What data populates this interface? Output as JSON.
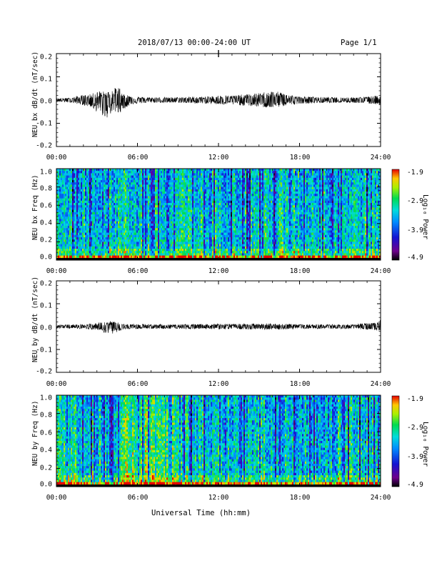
{
  "header": {
    "title": "2018/07/13  00:00-24:00 UT",
    "page": "Page 1/1"
  },
  "x_axis": {
    "label": "Universal Time (hh:mm)",
    "ticks": [
      "00:00",
      "06:00",
      "12:00",
      "18:00",
      "24:00"
    ]
  },
  "colorbar": {
    "label": "Log₁₀ Power",
    "ticks": [
      "-1.9",
      "-2.9",
      "-3.9",
      "-4.9"
    ],
    "range": [
      -4.9,
      -1.9
    ],
    "colormap": "rainbow (black-purple-blue-cyan-green-yellow-red)"
  },
  "chart_data": [
    {
      "type": "line",
      "ylabel": "NEU bx dB/dt (nT/sec)",
      "ylim": [
        -0.2,
        0.2
      ],
      "yticks": [
        "0.2",
        "0.1",
        "0.0",
        "-0.1",
        "-0.2"
      ],
      "xlim": [
        0,
        24
      ],
      "envelope": {
        "hours": [
          0,
          1,
          1.8,
          2.5,
          3.2,
          3.7,
          4.2,
          4.6,
          5,
          5.5,
          6,
          7,
          8,
          9,
          10,
          11,
          12,
          13,
          14,
          15,
          15.8,
          16.5,
          17,
          17.5,
          18,
          19,
          20,
          21,
          22,
          23,
          24
        ],
        "upper": [
          0.008,
          0.01,
          0.02,
          0.025,
          0.04,
          0.035,
          0.05,
          0.06,
          0.025,
          0.02,
          0.015,
          0.012,
          0.012,
          0.012,
          0.015,
          0.015,
          0.02,
          0.02,
          0.025,
          0.03,
          0.04,
          0.035,
          0.03,
          0.02,
          0.015,
          0.015,
          0.012,
          0.012,
          0.012,
          0.015,
          0.02
        ],
        "lower": [
          -0.008,
          -0.01,
          -0.02,
          -0.03,
          -0.06,
          -0.08,
          -0.05,
          -0.06,
          -0.04,
          -0.02,
          -0.015,
          -0.012,
          -0.012,
          -0.012,
          -0.015,
          -0.015,
          -0.02,
          -0.02,
          -0.025,
          -0.03,
          -0.035,
          -0.03,
          -0.025,
          -0.02,
          -0.015,
          -0.015,
          -0.012,
          -0.012,
          -0.012,
          -0.015,
          -0.02
        ]
      }
    },
    {
      "type": "heatmap",
      "ylabel": "NEU bx Freq (Hz)",
      "ylim": [
        0,
        1
      ],
      "yticks": [
        "1.0",
        "0.8",
        "0.6",
        "0.4",
        "0.2",
        "0.0"
      ],
      "xlim": [
        0,
        24
      ],
      "zlim": [
        -4.9,
        -1.9
      ]
    },
    {
      "type": "line",
      "ylabel": "NEU by dB/dt (nT/sec)",
      "ylim": [
        -0.2,
        0.2
      ],
      "yticks": [
        "0.2",
        "0.1",
        "0.0",
        "-0.1",
        "-0.2"
      ],
      "xlim": [
        0,
        24
      ],
      "envelope": {
        "hours": [
          0,
          2,
          3,
          3.5,
          4,
          5,
          6,
          8,
          10,
          12,
          14,
          16,
          17,
          18,
          20,
          22,
          23.5,
          24
        ],
        "upper": [
          0.008,
          0.01,
          0.015,
          0.03,
          0.025,
          0.012,
          0.01,
          0.01,
          0.01,
          0.012,
          0.012,
          0.015,
          0.012,
          0.01,
          0.01,
          0.01,
          0.02,
          0.03
        ],
        "lower": [
          -0.008,
          -0.01,
          -0.015,
          -0.03,
          -0.035,
          -0.012,
          -0.01,
          -0.01,
          -0.01,
          -0.012,
          -0.012,
          -0.015,
          -0.012,
          -0.01,
          -0.01,
          -0.01,
          -0.015,
          -0.02
        ]
      }
    },
    {
      "type": "heatmap",
      "ylabel": "NEU by Freq (Hz)",
      "ylim": [
        0,
        1
      ],
      "yticks": [
        "1.0",
        "0.8",
        "0.6",
        "0.4",
        "0.2",
        "0.0"
      ],
      "xlim": [
        0,
        24
      ],
      "zlim": [
        -4.9,
        -1.9
      ]
    }
  ]
}
